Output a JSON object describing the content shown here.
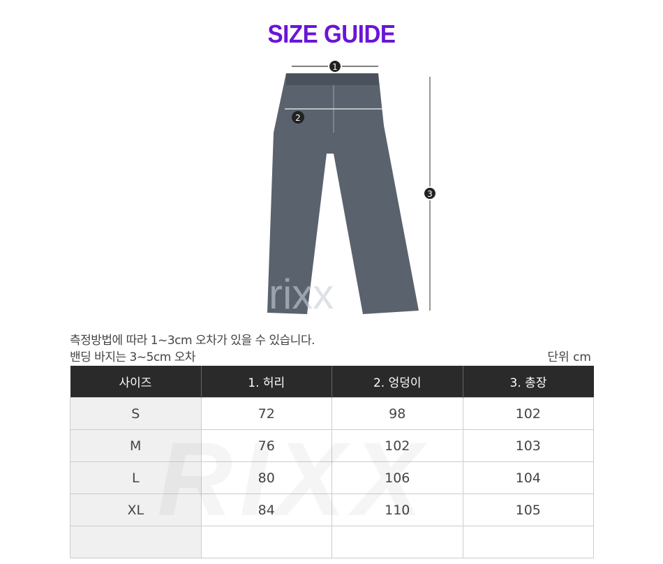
{
  "title": "SIZE GUIDE",
  "figure": {
    "markers": [
      "1",
      "2",
      "3"
    ],
    "watermark": "rixx"
  },
  "notes": [
    "측정방법에 따라 1~3cm 오차가 있을 수 있습니다.",
    "밴딩 바지는 3~5cm 오차"
  ],
  "unit": "단위 cm",
  "table": {
    "headers": [
      "사이즈",
      "1. 허리",
      "2. 엉덩이",
      "3. 총장"
    ],
    "rows": [
      [
        "S",
        "72",
        "98",
        "102"
      ],
      [
        "M",
        "76",
        "102",
        "103"
      ],
      [
        "L",
        "80",
        "106",
        "104"
      ],
      [
        "XL",
        "84",
        "110",
        "105"
      ],
      [
        "",
        "",
        "",
        ""
      ]
    ]
  },
  "background_watermark": "RIXX",
  "colors": {
    "title": "#6a14d8",
    "header_bg": "#2a2a2a"
  }
}
